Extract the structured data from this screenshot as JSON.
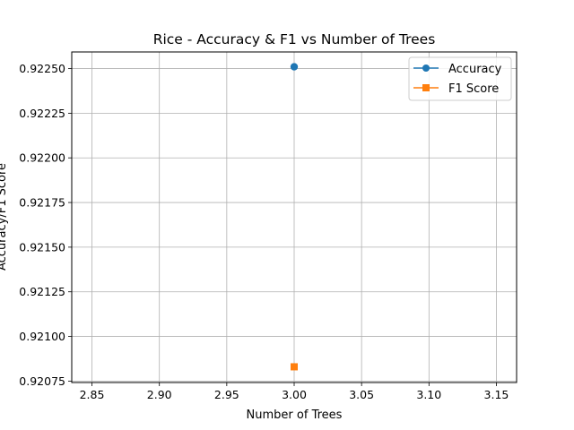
{
  "chart_data": {
    "type": "line",
    "title": "Rice - Accuracy & F1 vs Number of Trees",
    "xlabel": "Number of Trees",
    "ylabel": "Accuracy/F1 Score",
    "xlim": [
      2.835,
      3.165
    ],
    "ylim": [
      0.920742,
      0.922593
    ],
    "x_ticks": [
      "2.85",
      "2.90",
      "2.95",
      "3.00",
      "3.05",
      "3.10",
      "3.15"
    ],
    "y_ticks": [
      "0.92075",
      "0.92100",
      "0.92125",
      "0.92150",
      "0.92175",
      "0.92200",
      "0.92225",
      "0.92250"
    ],
    "grid": true,
    "legend_position": "top-right",
    "series": [
      {
        "name": "Accuracy",
        "color": "#1f77b4",
        "marker": "circle",
        "x": [
          3
        ],
        "y": [
          0.92251
        ]
      },
      {
        "name": "F1 Score",
        "color": "#ff7f0e",
        "marker": "square",
        "x": [
          3
        ],
        "y": [
          0.92083
        ]
      }
    ]
  }
}
